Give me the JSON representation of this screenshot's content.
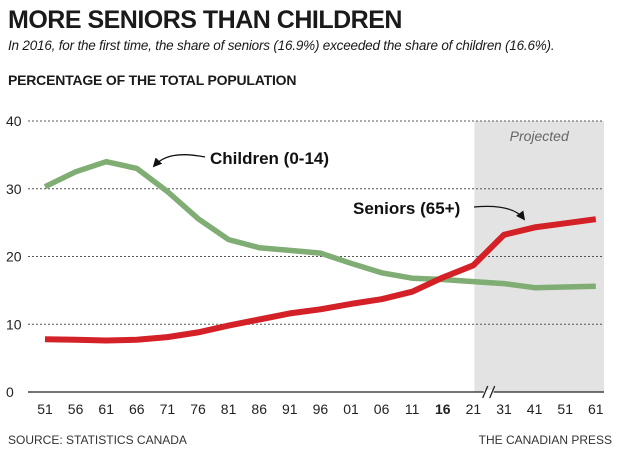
{
  "header": {
    "title": "MORE SENIORS THAN CHILDREN",
    "subtitle": "In 2016, for the first time, the share of seniors (16.9%) exceeded the share of children (16.6%).",
    "ylabel": "PERCENTAGE OF THE TOTAL POPULATION"
  },
  "footer": {
    "source": "SOURCE: STATISTICS CANADA",
    "credit": "THE CANADIAN PRESS"
  },
  "colors": {
    "children": "#7fad73",
    "seniors": "#d42027",
    "projected_bg": "#e3e3e3",
    "grid": "#555555"
  },
  "chart_data": {
    "type": "line",
    "title": "MORE SENIORS THAN CHILDREN",
    "ylabel": "PERCENTAGE OF THE TOTAL POPULATION",
    "categories": [
      "51",
      "56",
      "61",
      "66",
      "71",
      "76",
      "81",
      "86",
      "91",
      "96",
      "01",
      "06",
      "11",
      "16",
      "21",
      "31",
      "41",
      "51",
      "61"
    ],
    "bold_category": "16",
    "axis_break_between": [
      "21",
      "31"
    ],
    "ylim": [
      0,
      40
    ],
    "yticks": [
      0,
      10,
      20,
      30,
      40
    ],
    "grid": true,
    "projected_region": {
      "from": "21",
      "to": "61",
      "label": "Projected"
    },
    "series": [
      {
        "name": "Children (0-14)",
        "values": [
          30.3,
          32.5,
          34.0,
          33.0,
          29.6,
          25.6,
          22.5,
          21.3,
          20.9,
          20.5,
          19.0,
          17.6,
          16.8,
          16.6,
          16.3,
          16.0,
          15.4,
          15.5,
          15.6
        ]
      },
      {
        "name": "Seniors (65+)",
        "values": [
          7.8,
          7.7,
          7.6,
          7.7,
          8.1,
          8.8,
          9.8,
          10.7,
          11.6,
          12.2,
          13.0,
          13.7,
          14.8,
          16.9,
          18.7,
          23.2,
          24.3,
          24.9,
          25.5
        ]
      }
    ]
  }
}
